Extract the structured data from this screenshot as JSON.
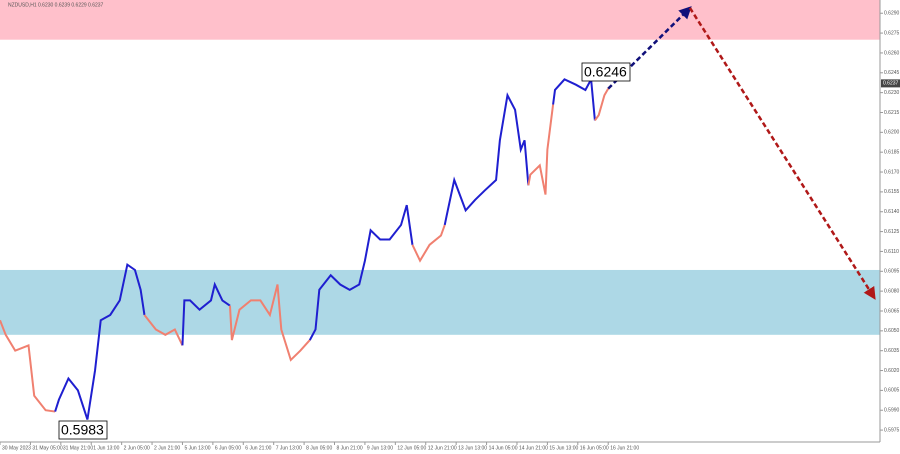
{
  "chart_data": {
    "type": "line",
    "header": "NZDUSD,H1  0.6230 0.6239 0.6229 0.6237",
    "xlim": [
      0,
      463
    ],
    "ylim": [
      0.5966,
      0.63
    ],
    "xticks": [
      {
        "value": 0,
        "label": "30 May 2023"
      },
      {
        "value": 16,
        "label": "31 May 05:00"
      },
      {
        "value": 32,
        "label": "31 May 21:00"
      },
      {
        "value": 48,
        "label": "1 Jun 13:00"
      },
      {
        "value": 64,
        "label": "2 Jun 05:00"
      },
      {
        "value": 80,
        "label": "2 Jun 21:00"
      },
      {
        "value": 96,
        "label": "5 Jun 13:00"
      },
      {
        "value": 112,
        "label": "6 Jun 05:00"
      },
      {
        "value": 128,
        "label": "6 Jun 21:00"
      },
      {
        "value": 144,
        "label": "7 Jun 13:00"
      },
      {
        "value": 160,
        "label": "8 Jun 05:00"
      },
      {
        "value": 176,
        "label": "8 Jun 21:00"
      },
      {
        "value": 192,
        "label": "9 Jun 13:00"
      },
      {
        "value": 208,
        "label": "12 Jun 05:00"
      },
      {
        "value": 224,
        "label": "12 Jun 21:00"
      },
      {
        "value": 240,
        "label": "13 Jun 13:00"
      },
      {
        "value": 256,
        "label": "14 Jun 05:00"
      },
      {
        "value": 272,
        "label": "14 Jun 21:00"
      },
      {
        "value": 288,
        "label": "15 Jun 13:00"
      },
      {
        "value": 304,
        "label": "16 Jun 05:00"
      },
      {
        "value": 320,
        "label": "16 Jun 21:00"
      }
    ],
    "yticks": [
      0.5975,
      {
        "value": 0.599,
        "label": "0.5990"
      },
      0.6005,
      {
        "value": 0.602,
        "label": "0.6020"
      },
      0.6035,
      {
        "value": 0.605,
        "label": "0.6050"
      },
      0.6065,
      {
        "value": 0.608,
        "label": "0.6080"
      },
      0.6095,
      {
        "value": 0.611,
        "label": "0.6110"
      },
      0.6125,
      {
        "value": 0.614,
        "label": "0.6140"
      },
      0.6155,
      {
        "value": 0.617,
        "label": "0.6170"
      },
      0.6185,
      {
        "value": 0.62,
        "label": "0.6200"
      },
      0.6215,
      {
        "value": 0.623,
        "label": "0.6230"
      },
      0.6245,
      {
        "value": 0.626,
        "label": "0.6260"
      },
      0.6275,
      {
        "value": 0.629,
        "label": "0.6290"
      }
    ],
    "zones": [
      {
        "from": 0.627,
        "to": 0.63,
        "color": "#ffc0cb"
      },
      {
        "from": 0.6047,
        "to": 0.6096,
        "color": "#add8e6"
      }
    ],
    "series": [
      {
        "color": "#f08070",
        "x": [
          0,
          3,
          8,
          15,
          18,
          24,
          29
        ],
        "values": [
          0.6058,
          0.6047,
          0.6035,
          0.6039,
          0.6001,
          0.599,
          0.5989
        ]
      },
      {
        "color": "#1f1fd0",
        "x": [
          29,
          31,
          36,
          41,
          46,
          50,
          53,
          58,
          63,
          67,
          71,
          74,
          76
        ],
        "values": [
          0.5989,
          0.5998,
          0.6014,
          0.6005,
          0.5983,
          0.602,
          0.6058,
          0.6062,
          0.6073,
          0.61,
          0.6096,
          0.6081,
          0.6062
        ]
      },
      {
        "color": "#f08070",
        "x": [
          76,
          82,
          87,
          92,
          96
        ],
        "values": [
          0.6062,
          0.6051,
          0.6047,
          0.6051,
          0.6039
        ]
      },
      {
        "color": "#1f1fd0",
        "x": [
          96,
          97,
          100,
          105,
          111,
          113,
          117,
          121
        ],
        "values": [
          0.6039,
          0.6073,
          0.6073,
          0.6066,
          0.6073,
          0.6085,
          0.6073,
          0.6069
        ]
      },
      {
        "color": "#f08070",
        "x": [
          121,
          122,
          126,
          132,
          137,
          142,
          146,
          148,
          153,
          158,
          163
        ],
        "values": [
          0.6069,
          0.6043,
          0.6066,
          0.6073,
          0.6073,
          0.6062,
          0.6085,
          0.6051,
          0.6028,
          0.6035,
          0.6043
        ]
      },
      {
        "color": "#1f1fd0",
        "x": [
          163,
          166,
          168,
          174,
          179,
          184,
          189,
          192,
          195,
          200,
          205,
          211,
          214,
          217
        ],
        "values": [
          0.6043,
          0.6051,
          0.6081,
          0.6092,
          0.6085,
          0.6081,
          0.6085,
          0.6103,
          0.6126,
          0.6119,
          0.6119,
          0.613,
          0.6145,
          0.6115
        ]
      },
      {
        "color": "#f08070",
        "x": [
          217,
          221,
          226,
          232,
          234
        ],
        "values": [
          0.6115,
          0.6103,
          0.6115,
          0.6122,
          0.613
        ]
      },
      {
        "color": "#1f1fd0",
        "x": [
          234,
          235,
          239,
          245,
          250,
          255,
          261,
          263,
          267,
          271,
          274,
          276,
          278
        ],
        "values": [
          0.613,
          0.6137,
          0.6164,
          0.6141,
          0.6149,
          0.6156,
          0.6164,
          0.6194,
          0.6228,
          0.6217,
          0.6187,
          0.6194,
          0.616
        ]
      },
      {
        "color": "#f08070",
        "x": [
          278,
          279,
          284,
          287,
          288,
          291
        ],
        "values": [
          0.616,
          0.6168,
          0.6175,
          0.6153,
          0.6187,
          0.6221
        ]
      },
      {
        "color": "#1f1fd0",
        "x": [
          291,
          292,
          297,
          303,
          308,
          311,
          313
        ],
        "values": [
          0.6221,
          0.6232,
          0.624,
          0.6236,
          0.6232,
          0.624,
          0.6209
        ]
      },
      {
        "color": "#f08070",
        "x": [
          313,
          315,
          318,
          320
        ],
        "values": [
          0.6209,
          0.6213,
          0.6228,
          0.6233
        ]
      }
    ],
    "arrows": [
      {
        "color": "#10107a",
        "x": [
          320,
          363
        ],
        "values": [
          0.6233,
          0.6294
        ]
      },
      {
        "color": "#b01818",
        "x": [
          363,
          460
        ],
        "values": [
          0.6294,
          0.6075
        ]
      }
    ],
    "annotations": [
      "0.6246",
      "0.5983"
    ],
    "current_price": {
      "value": 0.6237,
      "label": "0.6237"
    }
  }
}
